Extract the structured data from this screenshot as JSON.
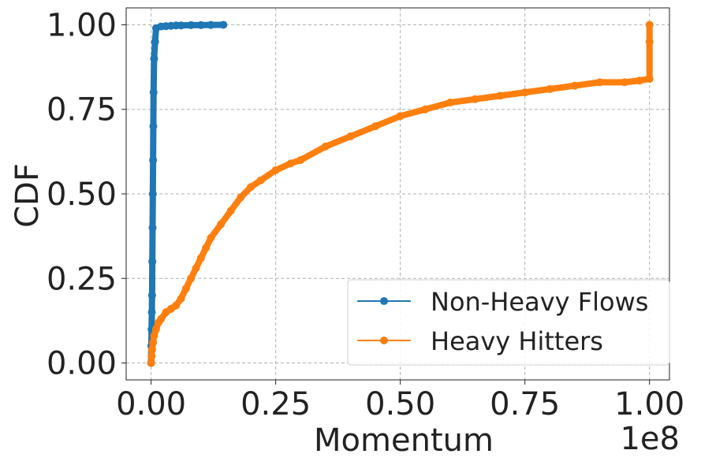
{
  "chart_data": {
    "type": "line",
    "xlabel": "Momentum",
    "ylabel": "CDF",
    "x_offset_label": "1e8",
    "xlim": [
      -5000000,
      104000000
    ],
    "ylim": [
      -0.05,
      1.05
    ],
    "xticks": [
      0,
      25000000,
      50000000,
      75000000,
      100000000
    ],
    "xtick_labels": [
      "0.00",
      "0.25",
      "0.50",
      "0.75",
      "1.00"
    ],
    "yticks": [
      0,
      0.25,
      0.5,
      0.75,
      1.0
    ],
    "ytick_labels": [
      "0.00",
      "0.25",
      "0.50",
      "0.75",
      "1.00"
    ],
    "grid": true,
    "legend_position": "lower-right",
    "series": [
      {
        "name": "Non-Heavy Flows",
        "color": "#1f77b4",
        "marker": "circle",
        "x": [
          0,
          50000,
          100000,
          150000,
          200000,
          250000,
          300000,
          350000,
          400000,
          450000,
          500000,
          600000,
          800000,
          1000000,
          2000000,
          3000000,
          4000000,
          5000000,
          6000000,
          8000000,
          10000000,
          12000000,
          14500000
        ],
        "y": [
          0.0,
          0.05,
          0.1,
          0.15,
          0.2,
          0.3,
          0.4,
          0.5,
          0.6,
          0.7,
          0.8,
          0.9,
          0.95,
          0.99,
          0.995,
          0.996,
          0.997,
          0.998,
          0.998,
          0.999,
          0.999,
          0.9995,
          1.0
        ]
      },
      {
        "name": "Heavy Hitters",
        "color": "#ff7f0e",
        "marker": "circle",
        "x": [
          0,
          100000,
          200000,
          400000,
          600000,
          1000000,
          1500000,
          2000000,
          3000000,
          4000000,
          5000000,
          6000000,
          7000000,
          8000000,
          9000000,
          10000000,
          11000000,
          12000000,
          14000000,
          16000000,
          18000000,
          20000000,
          22000000,
          25000000,
          28000000,
          30000000,
          35000000,
          40000000,
          45000000,
          50000000,
          55000000,
          60000000,
          65000000,
          70000000,
          75000000,
          80000000,
          85000000,
          90000000,
          95000000,
          98000000,
          100000000,
          100000000,
          100000000
        ],
        "y": [
          0.0,
          0.02,
          0.04,
          0.06,
          0.08,
          0.1,
          0.12,
          0.13,
          0.15,
          0.16,
          0.17,
          0.19,
          0.22,
          0.25,
          0.28,
          0.31,
          0.34,
          0.37,
          0.41,
          0.45,
          0.49,
          0.52,
          0.54,
          0.57,
          0.59,
          0.6,
          0.64,
          0.67,
          0.7,
          0.73,
          0.75,
          0.77,
          0.78,
          0.79,
          0.8,
          0.81,
          0.82,
          0.83,
          0.83,
          0.835,
          0.84,
          0.95,
          1.0
        ]
      }
    ]
  }
}
